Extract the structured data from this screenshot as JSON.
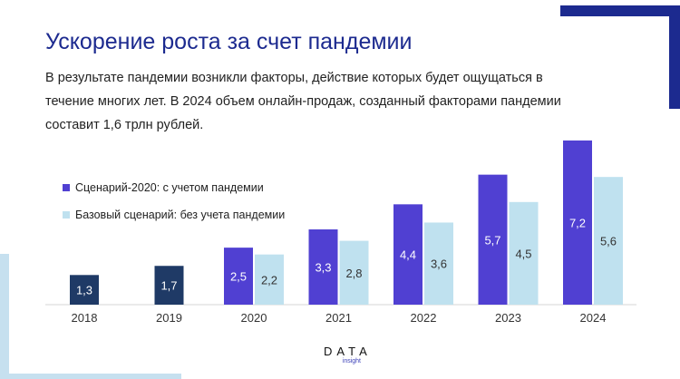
{
  "slide": {
    "title": "Ускорение роста за счет пандемии",
    "subtitle": "В результате пандемии возникли факторы, действие которых будет ощущаться в течение многих лет. В 2024 объем онлайн-продаж, созданный факторами пандемии составит 1,6 трлн рублей."
  },
  "logo": {
    "main": "DATA",
    "sub": "insight"
  },
  "colors": {
    "title": "#1c2a8f",
    "base_2018_2019": "#1f3a66",
    "scenario_2020": "#5040d2",
    "base_scenario": "#bfe1ef",
    "decor_dark": "#1c2a8f",
    "decor_light": "#c6e0ef"
  },
  "chart_data": {
    "type": "bar",
    "categories": [
      "2018",
      "2019",
      "2020",
      "2021",
      "2022",
      "2023",
      "2024"
    ],
    "series": [
      {
        "name": "Сценарий-2020: с учетом пандемии",
        "values": [
          1.3,
          1.7,
          2.5,
          3.3,
          4.4,
          5.7,
          7.2
        ]
      },
      {
        "name": "Базовый сценарий: без учета пандемии",
        "values": [
          null,
          null,
          2.2,
          2.8,
          3.6,
          4.5,
          5.6
        ]
      }
    ],
    "value_labels": [
      [
        "1,3",
        "1,7",
        "2,5",
        "3,3",
        "4,4",
        "5,7",
        "7,2"
      ],
      [
        "",
        "",
        "2,2",
        "2,8",
        "3,6",
        "4,5",
        "5,6"
      ]
    ],
    "ylim": [
      0,
      7.5
    ],
    "grid": false,
    "legend_position": "top-left",
    "xlabel": "",
    "ylabel": ""
  }
}
